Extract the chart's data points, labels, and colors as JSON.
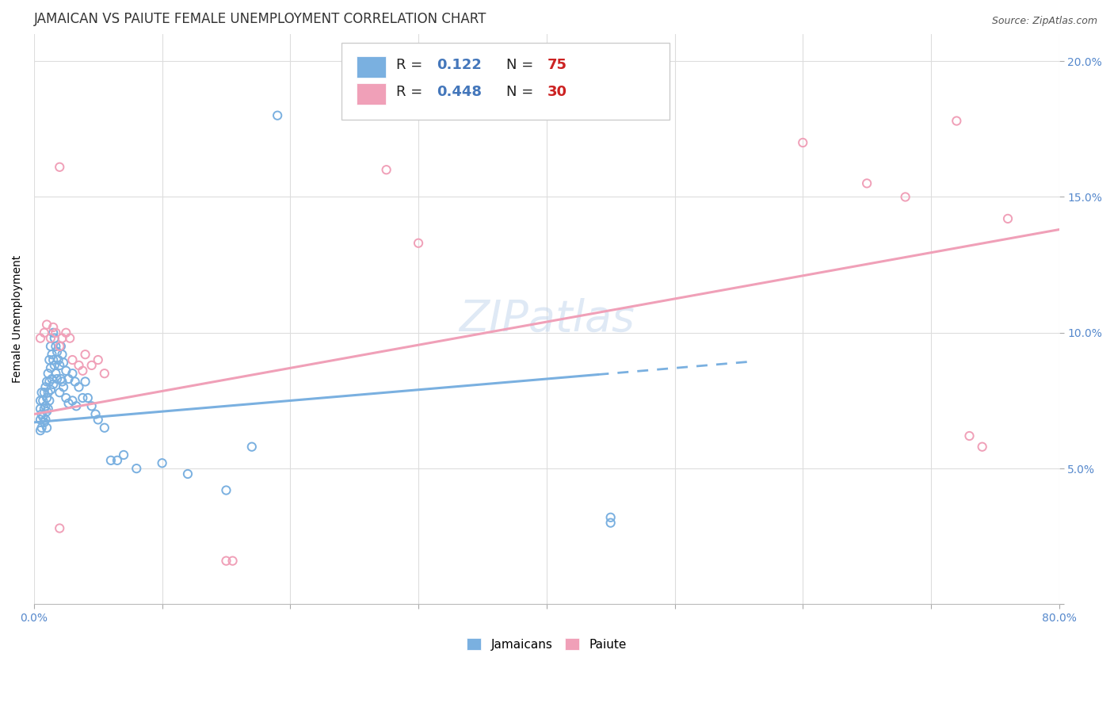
{
  "title": "JAMAICAN VS PAIUTE FEMALE UNEMPLOYMENT CORRELATION CHART",
  "source": "Source: ZipAtlas.com",
  "ylabel": "Female Unemployment",
  "xlim": [
    0.0,
    0.8
  ],
  "ylim": [
    0.0,
    0.21
  ],
  "xticks": [
    0.0,
    0.1,
    0.2,
    0.3,
    0.4,
    0.5,
    0.6,
    0.7,
    0.8
  ],
  "xticklabels": [
    "0.0%",
    "",
    "",
    "",
    "",
    "",
    "",
    "",
    "80.0%"
  ],
  "yticks": [
    0.0,
    0.05,
    0.1,
    0.15,
    0.2
  ],
  "yticklabels": [
    "",
    "5.0%",
    "10.0%",
    "15.0%",
    "20.0%"
  ],
  "jamaican_color": "#7ab0e0",
  "paiute_color": "#f0a0b8",
  "jamaican_R": 0.122,
  "jamaican_N": 75,
  "paiute_R": 0.448,
  "paiute_N": 30,
  "watermark": "ZIPatlas",
  "background_color": "#ffffff",
  "grid_color": "#dddddd",
  "jamaican_line_intercept": 0.067,
  "jamaican_line_slope": 0.04,
  "jamaican_line_solid_end": 0.44,
  "jamaican_line_dash_end": 0.56,
  "paiute_line_intercept": 0.07,
  "paiute_line_slope": 0.085,
  "jamaican_scatter": [
    [
      0.005,
      0.075
    ],
    [
      0.005,
      0.072
    ],
    [
      0.005,
      0.068
    ],
    [
      0.005,
      0.064
    ],
    [
      0.006,
      0.078
    ],
    [
      0.006,
      0.07
    ],
    [
      0.006,
      0.065
    ],
    [
      0.007,
      0.075
    ],
    [
      0.007,
      0.069
    ],
    [
      0.008,
      0.078
    ],
    [
      0.008,
      0.072
    ],
    [
      0.008,
      0.067
    ],
    [
      0.009,
      0.08
    ],
    [
      0.009,
      0.073
    ],
    [
      0.009,
      0.068
    ],
    [
      0.01,
      0.082
    ],
    [
      0.01,
      0.076
    ],
    [
      0.01,
      0.071
    ],
    [
      0.01,
      0.065
    ],
    [
      0.011,
      0.085
    ],
    [
      0.011,
      0.078
    ],
    [
      0.011,
      0.072
    ],
    [
      0.012,
      0.09
    ],
    [
      0.012,
      0.082
    ],
    [
      0.012,
      0.075
    ],
    [
      0.013,
      0.095
    ],
    [
      0.013,
      0.087
    ],
    [
      0.013,
      0.079
    ],
    [
      0.014,
      0.092
    ],
    [
      0.014,
      0.083
    ],
    [
      0.015,
      0.1
    ],
    [
      0.015,
      0.09
    ],
    [
      0.015,
      0.081
    ],
    [
      0.016,
      0.098
    ],
    [
      0.016,
      0.088
    ],
    [
      0.017,
      0.095
    ],
    [
      0.017,
      0.085
    ],
    [
      0.018,
      0.093
    ],
    [
      0.018,
      0.083
    ],
    [
      0.019,
      0.09
    ],
    [
      0.02,
      0.088
    ],
    [
      0.02,
      0.078
    ],
    [
      0.021,
      0.095
    ],
    [
      0.021,
      0.083
    ],
    [
      0.022,
      0.092
    ],
    [
      0.022,
      0.082
    ],
    [
      0.023,
      0.089
    ],
    [
      0.023,
      0.08
    ],
    [
      0.025,
      0.086
    ],
    [
      0.025,
      0.076
    ],
    [
      0.027,
      0.083
    ],
    [
      0.027,
      0.074
    ],
    [
      0.03,
      0.085
    ],
    [
      0.03,
      0.075
    ],
    [
      0.032,
      0.082
    ],
    [
      0.033,
      0.073
    ],
    [
      0.035,
      0.08
    ],
    [
      0.038,
      0.076
    ],
    [
      0.04,
      0.082
    ],
    [
      0.042,
      0.076
    ],
    [
      0.045,
      0.073
    ],
    [
      0.048,
      0.07
    ],
    [
      0.05,
      0.068
    ],
    [
      0.055,
      0.065
    ],
    [
      0.06,
      0.053
    ],
    [
      0.065,
      0.053
    ],
    [
      0.07,
      0.055
    ],
    [
      0.08,
      0.05
    ],
    [
      0.1,
      0.052
    ],
    [
      0.12,
      0.048
    ],
    [
      0.15,
      0.042
    ],
    [
      0.17,
      0.058
    ],
    [
      0.19,
      0.18
    ],
    [
      0.45,
      0.032
    ],
    [
      0.45,
      0.03
    ]
  ],
  "paiute_scatter": [
    [
      0.005,
      0.098
    ],
    [
      0.008,
      0.1
    ],
    [
      0.01,
      0.103
    ],
    [
      0.013,
      0.098
    ],
    [
      0.015,
      0.102
    ],
    [
      0.017,
      0.1
    ],
    [
      0.02,
      0.095
    ],
    [
      0.02,
      0.028
    ],
    [
      0.022,
      0.098
    ],
    [
      0.025,
      0.1
    ],
    [
      0.028,
      0.098
    ],
    [
      0.03,
      0.09
    ],
    [
      0.035,
      0.088
    ],
    [
      0.038,
      0.086
    ],
    [
      0.04,
      0.092
    ],
    [
      0.045,
      0.088
    ],
    [
      0.05,
      0.09
    ],
    [
      0.055,
      0.085
    ],
    [
      0.02,
      0.161
    ],
    [
      0.15,
      0.016
    ],
    [
      0.155,
      0.016
    ],
    [
      0.275,
      0.16
    ],
    [
      0.3,
      0.133
    ],
    [
      0.6,
      0.17
    ],
    [
      0.65,
      0.155
    ],
    [
      0.68,
      0.15
    ],
    [
      0.72,
      0.178
    ],
    [
      0.73,
      0.062
    ],
    [
      0.74,
      0.058
    ],
    [
      0.76,
      0.142
    ]
  ],
  "title_fontsize": 12,
  "axis_label_fontsize": 10,
  "tick_fontsize": 10,
  "tick_color": "#5588cc",
  "legend_fontsize": 13,
  "watermark_fontsize": 40,
  "watermark_color": "#c5d8ee",
  "watermark_alpha": 0.55,
  "legend_r_color": "#4477bb",
  "legend_n_color": "#cc2222"
}
